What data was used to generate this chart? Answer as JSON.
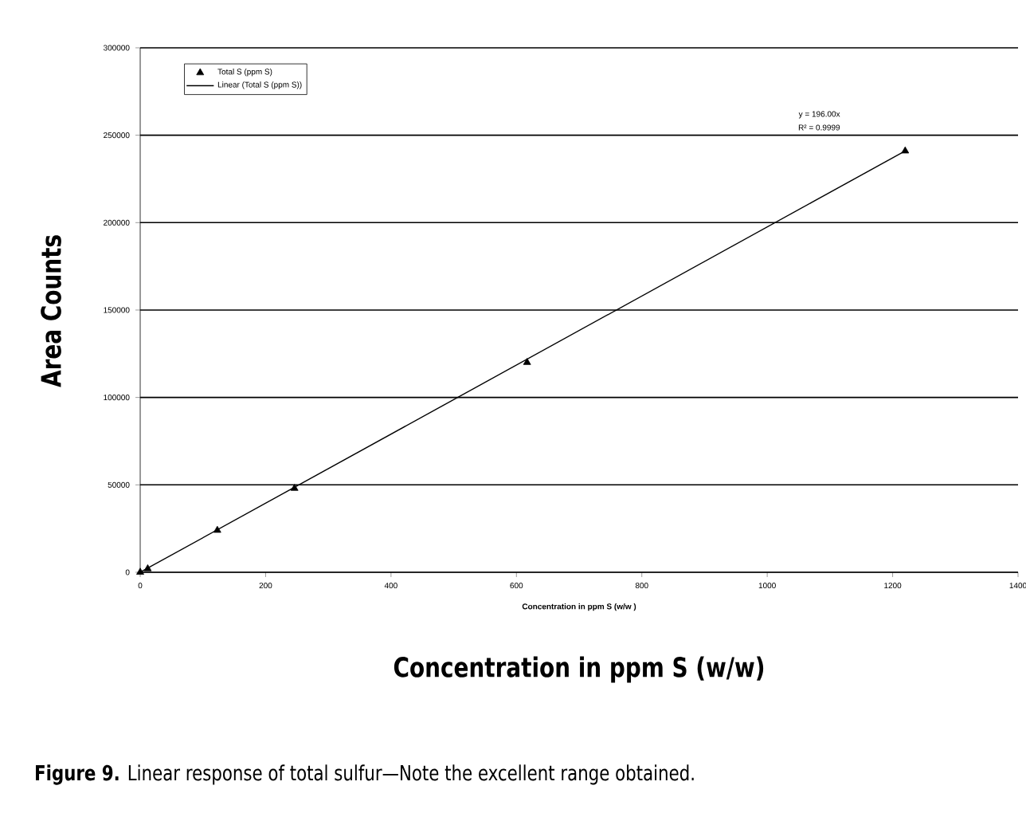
{
  "chart_data": {
    "type": "scatter",
    "xlabel": "Concentration in ppm S (w/w)",
    "ylabel": "Area Counts",
    "x": [
      0,
      12,
      123,
      246,
      617,
      1220
    ],
    "series": [
      {
        "name": "Total S (ppm S)",
        "type": "scatter",
        "color": "#000000",
        "marker": "triangle",
        "values": [
          0,
          2000,
          24000,
          48000,
          120000,
          241000
        ]
      },
      {
        "name": "Linear (Total S (ppm S))",
        "type": "line",
        "color": "#000000",
        "x": [
          0,
          1220
        ],
        "values": [
          0,
          241000
        ]
      }
    ],
    "xlim": [
      0,
      1400
    ],
    "xticks": [
      0,
      200,
      400,
      600,
      800,
      1000,
      1200,
      1400
    ],
    "ylim": [
      0,
      300000
    ],
    "yticks": [
      0,
      50000,
      100000,
      150000,
      200000,
      250000,
      300000
    ],
    "grid": "y",
    "legend": "top left",
    "annotations": [
      "Concentration in ppm S (w/w )",
      "y = 196.00x",
      "R² = 0.9999",
      "**Figure 9.** Linear response of total sulfur—Note the excellent range obtained."
    ]
  }
}
